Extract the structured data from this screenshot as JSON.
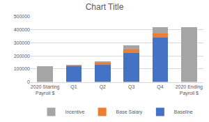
{
  "chart_data": {
    "type": "bar",
    "title": "Chart Title",
    "stacked": true,
    "categories": [
      "2020 Starting Payroll $",
      "Q1",
      "Q2",
      "Q3",
      "Q4",
      "2020 Ending Payroll $"
    ],
    "series": [
      {
        "name": "Baseline",
        "color": "#4472c4",
        "values": [
          null,
          120000,
          130000,
          220000,
          340000,
          null
        ]
      },
      {
        "name": "Base Salary",
        "color": "#ed7d31",
        "values": [
          null,
          8000,
          15000,
          30000,
          30000,
          null
        ]
      },
      {
        "name": "Incentive",
        "color": "#a5a5a5",
        "values": [
          120000,
          2000,
          15000,
          30000,
          50000,
          420000
        ]
      }
    ],
    "ylim": [
      0,
      500000
    ],
    "yticks": [
      0,
      100000,
      200000,
      300000,
      400000,
      500000
    ],
    "grid": true,
    "legend": "bottom"
  }
}
